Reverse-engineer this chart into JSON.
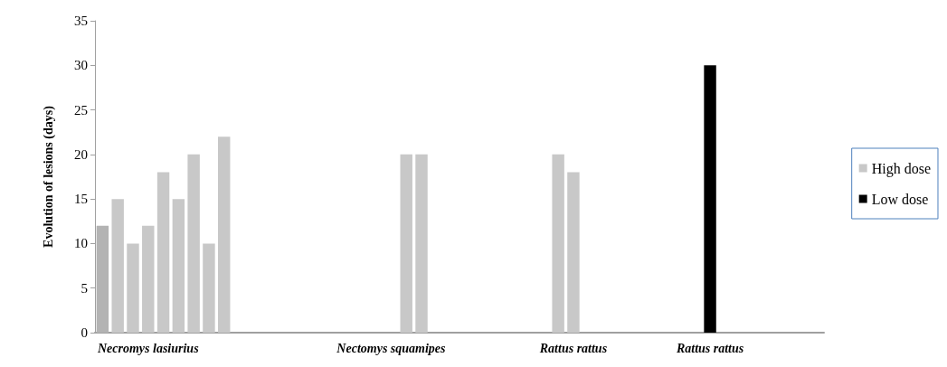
{
  "chart_data": {
    "type": "bar",
    "ylabel": "Evolution of lesions (days)",
    "categories": [
      null,
      null,
      null,
      "Necromys lasiurius",
      null,
      null,
      null,
      null,
      null,
      null,
      null,
      null,
      null,
      null,
      null,
      null,
      null,
      null,
      null,
      "Nectomys squamipes",
      null,
      null,
      null,
      null,
      null,
      null,
      null,
      null,
      null,
      null,
      null,
      "Rattus rattus",
      null,
      null,
      null,
      null,
      null,
      null,
      null,
      null,
      "Rattus rattus",
      null,
      null,
      null,
      null,
      null,
      null,
      null
    ],
    "series": [
      {
        "name": "High dose",
        "color": "#c8c8c8",
        "colors": [
          "#b3b3b3",
          "#c8c8c8",
          "#c8c8c8",
          "#c8c8c8",
          "#c8c8c8",
          "#c8c8c8",
          "#c8c8c8",
          "#c8c8c8",
          "#c8c8c8",
          null,
          null,
          null,
          null,
          null,
          null,
          null,
          null,
          null,
          null,
          null,
          "#c8c8c8",
          "#c8c8c8",
          null,
          null,
          null,
          null,
          null,
          null,
          null,
          null,
          "#c8c8c8",
          "#c8c8c8",
          null,
          null,
          null,
          null,
          null,
          null,
          null,
          null,
          null,
          null,
          null,
          null,
          null,
          null,
          null,
          null
        ],
        "values": [
          12,
          15,
          10,
          12,
          18,
          15,
          20,
          10,
          22,
          null,
          null,
          null,
          null,
          null,
          null,
          null,
          null,
          null,
          null,
          null,
          20,
          20,
          null,
          null,
          null,
          null,
          null,
          null,
          null,
          null,
          20,
          18,
          null,
          null,
          null,
          null,
          null,
          null,
          null,
          null,
          null,
          null,
          null,
          null,
          null,
          null,
          null,
          null
        ]
      },
      {
        "name": "Low dose",
        "color": "#000000",
        "values": [
          null,
          null,
          null,
          null,
          null,
          null,
          null,
          null,
          null,
          null,
          null,
          null,
          null,
          null,
          null,
          null,
          null,
          null,
          null,
          null,
          null,
          null,
          null,
          null,
          null,
          null,
          null,
          null,
          null,
          null,
          null,
          null,
          null,
          null,
          null,
          null,
          null,
          null,
          null,
          null,
          30,
          null,
          null,
          null,
          null,
          null,
          null,
          null
        ]
      }
    ],
    "ylim": [
      0,
      35
    ],
    "yticks": [
      0,
      5,
      10,
      15,
      20,
      25,
      30,
      35
    ],
    "grid": false,
    "legend": "right"
  }
}
